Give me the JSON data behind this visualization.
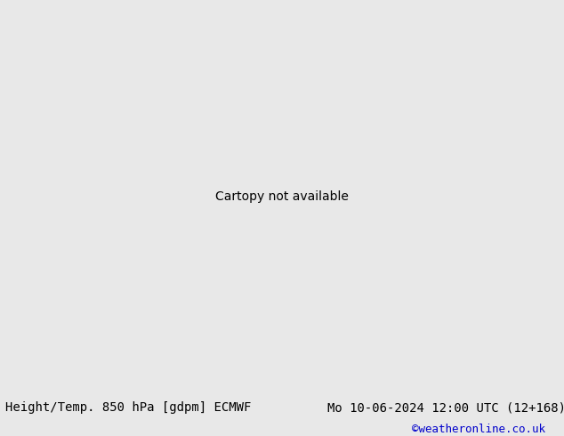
{
  "title_left": "Height/Temp. 850 hPa [gdpm] ECMWF",
  "title_right": "Mo 10-06-2024 12:00 UTC (12+168)",
  "credit": "©weatheronline.co.uk",
  "footer_bg": "#e8e8e8",
  "footer_text_color": "#000000",
  "credit_color": "#0000cc",
  "font_size_footer": 10,
  "fig_width": 6.34,
  "fig_height": 4.9,
  "dpi": 100,
  "map_extent": [
    -25,
    45,
    30,
    72
  ],
  "land_color": "#c8e8a0",
  "sea_color": "#e8e8e8",
  "mountain_color": "#aaaaaa",
  "black_line_lw": 2.2,
  "temp_line_lw": 1.4
}
